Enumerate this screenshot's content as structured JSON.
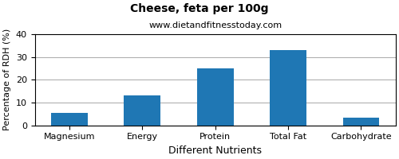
{
  "chart_data": {
    "type": "bar",
    "title": "Cheese, feta per 100g",
    "subtitle": "www.dietandfitnesstoday.com",
    "xlabel": "Different Nutrients",
    "ylabel": "Percentage of RDH (%)",
    "categories": [
      "Magnesium",
      "Energy",
      "Protein",
      "Total Fat",
      "Carbohydrate"
    ],
    "values": [
      5.5,
      13.0,
      25.0,
      33.0,
      3.5
    ],
    "ylim": [
      0,
      40
    ],
    "yticks": [
      0,
      10,
      20,
      30,
      40
    ],
    "grid": true
  }
}
